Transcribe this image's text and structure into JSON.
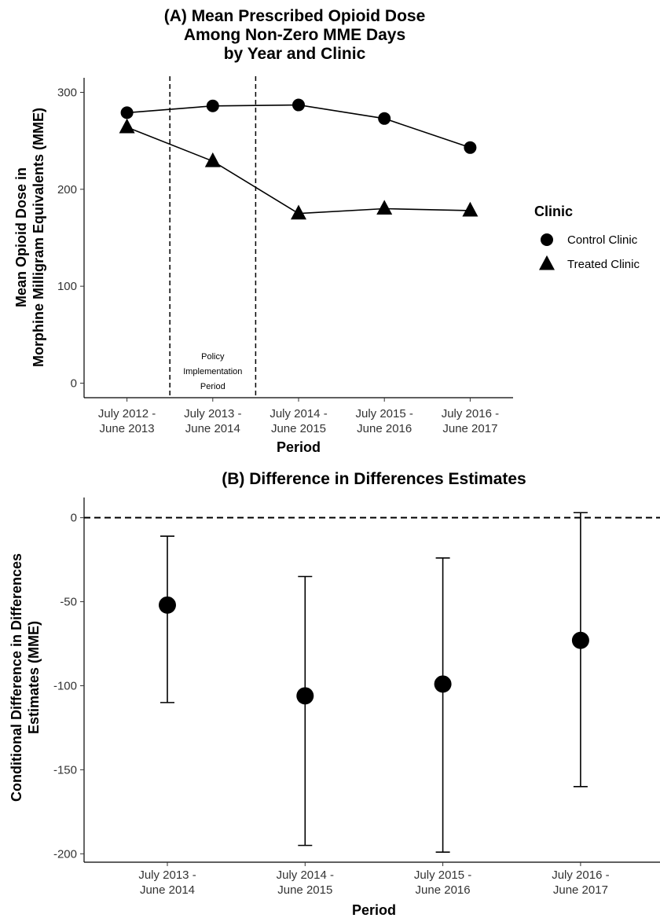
{
  "chart_data": [
    {
      "type": "line",
      "title": [
        "(A) Mean Prescribed Opioid Dose",
        "Among Non-Zero MME Days",
        "by Year and Clinic"
      ],
      "xlabel": "Period",
      "ylabel": [
        "Mean Opioid Dose in",
        "Morphine Milligram Equivalents (MME)"
      ],
      "categories": [
        [
          "July 2012 -",
          "June 2013"
        ],
        [
          "July 2013 -",
          "June 2014"
        ],
        [
          "July 2014 -",
          "June 2015"
        ],
        [
          "July 2015 -",
          "June 2016"
        ],
        [
          "July 2016 -",
          "June 2017"
        ]
      ],
      "ylim": [
        -15,
        315
      ],
      "yticks": [
        0,
        100,
        200,
        300
      ],
      "legend": {
        "title": "Clinic",
        "placement": "right"
      },
      "series": [
        {
          "name": "Control Clinic",
          "marker": "circle",
          "values": [
            279,
            286,
            287,
            273,
            243
          ]
        },
        {
          "name": "Treated Clinic",
          "marker": "triangle",
          "values": [
            264,
            229,
            175,
            180,
            178
          ]
        }
      ],
      "shaded_period": {
        "between_categories": [
          0.5,
          1.5
        ],
        "label": [
          "Policy",
          "Implementation",
          "Period"
        ]
      },
      "grid": false
    },
    {
      "type": "scatter",
      "title": "(B) Difference in Differences Estimates",
      "xlabel": "Period",
      "ylabel": [
        "Conditional Difference in Differences",
        "Estimates (MME)"
      ],
      "categories": [
        [
          "July 2013 -",
          "June 2014"
        ],
        [
          "July 2014 -",
          "June 2015"
        ],
        [
          "July 2015 -",
          "June 2016"
        ],
        [
          "July 2016 -",
          "June 2017"
        ]
      ],
      "ylim": [
        -205,
        12
      ],
      "yticks": [
        0,
        -50,
        -100,
        -150,
        -200
      ],
      "ytick_labels": [
        "0",
        "-50",
        "-100",
        "-150",
        "-200"
      ],
      "reference_line": 0,
      "estimates": [
        -52,
        -106,
        -99,
        -73
      ],
      "ci_lower": [
        -110,
        -195,
        -199,
        -160
      ],
      "ci_upper": [
        -11,
        -35,
        -24,
        3
      ],
      "grid": false
    }
  ]
}
